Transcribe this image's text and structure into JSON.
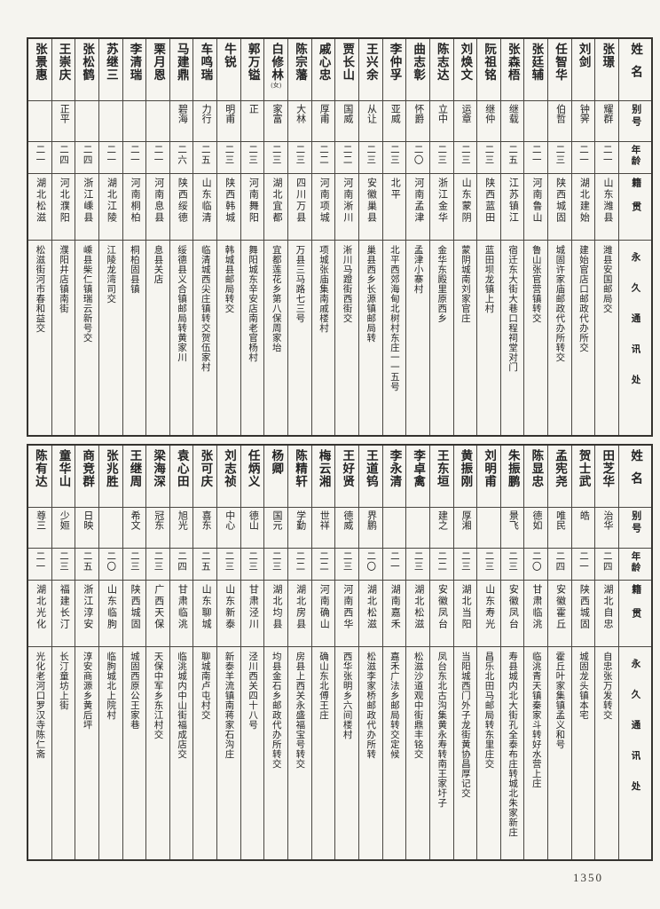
{
  "page": {
    "number": "1350"
  },
  "headers": {
    "name": "姓名",
    "alias": "别号",
    "age": "年龄",
    "native": "籍贯",
    "address": "永久通讯处"
  },
  "sections": [
    {
      "people": [
        {
          "name": "张璟",
          "alias": "耀群",
          "age": "二一",
          "native": "山东潍县",
          "address": "潍县安国邮局交"
        },
        {
          "name": "刘剑",
          "alias": "钟霁",
          "age": "二一",
          "native": "湖北建始",
          "address": "建始官店口邮政代办所交"
        },
        {
          "name": "任智华",
          "alias": "伯哲",
          "age": "二三",
          "native": "陕西城固",
          "address": "城固许家庙邮政代办所转交"
        },
        {
          "name": "张廷辅",
          "alias": "",
          "age": "二一",
          "native": "河南鲁山",
          "address": "鲁山张官营镇转交"
        },
        {
          "name": "张森梧",
          "alias": "继载",
          "age": "二五",
          "native": "江苏镇江",
          "address": "宿迁东大街大巷口程祠堂对门"
        },
        {
          "name": "阮祖铭",
          "alias": "继仲",
          "age": "二三",
          "native": "陕西蓝田",
          "address": "蓝田坝龙镇上村"
        },
        {
          "name": "刘焕文",
          "alias": "运章",
          "age": "二三",
          "native": "山东蒙阴",
          "address": "蒙阴城南刘家官庄"
        },
        {
          "name": "陈志达",
          "alias": "立中",
          "age": "二三",
          "native": "浙江金华",
          "address": "金华东殿里原西乡"
        },
        {
          "name": "曲志彰",
          "alias": "怀爵",
          "age": "二〇",
          "native": "河南孟津",
          "address": "孟津小寨村"
        },
        {
          "name": "李仲孚",
          "alias": "亚威",
          "age": "二三",
          "native": "北平",
          "address": "北平西郊海甸北树村东庄一一五号"
        },
        {
          "name": "王兴余",
          "alias": "从让",
          "age": "二三",
          "native": "安徽巢县",
          "address": "巢县西乡长源镇邮局转"
        },
        {
          "name": "贾长山",
          "alias": "国威",
          "age": "二二",
          "native": "河南淅川",
          "address": "淅川马蹬街西街交"
        },
        {
          "name": "戚心忠",
          "alias": "厚甫",
          "age": "二二",
          "native": "河南项城",
          "address": "项城张庙集南戚楼村"
        },
        {
          "name": "陈宗藩",
          "alias": "大林",
          "age": "二三",
          "native": "四川万县",
          "address": "万县三马路七三号"
        },
        {
          "name": "白修林",
          "note": "(女)",
          "alias": "家富",
          "age": "二三",
          "native": "湖北宜都",
          "address": "宜都莲花乡第八保周家坮"
        },
        {
          "name": "郭万镒",
          "alias": "正",
          "age": "二三",
          "native": "河南舞阳",
          "address": "舞阳城东辛安店南老官杨村"
        },
        {
          "name": "牛锐",
          "alias": "明甫",
          "age": "二三",
          "native": "陕西韩城",
          "address": "韩城县邮局转交"
        },
        {
          "name": "车鸣瑞",
          "alias": "力行",
          "age": "二五",
          "native": "山东临清",
          "address": "临清城西尖庄镇转交贺伍家村"
        },
        {
          "name": "马建鼎",
          "alias": "碧海",
          "age": "二六",
          "native": "陕西绥德",
          "address": "绥德县义合镇邮局转黄家川"
        },
        {
          "name": "栗月恩",
          "alias": "",
          "age": "二一",
          "native": "河南息县",
          "address": "息县关店"
        },
        {
          "name": "李清瑞",
          "alias": "",
          "age": "二一",
          "native": "河南桐柏",
          "address": "桐柏固县镇"
        },
        {
          "name": "苏继三",
          "alias": "",
          "age": "二一",
          "native": "湖北江陵",
          "address": "江陵龙湾司交"
        },
        {
          "name": "张松鹤",
          "alias": "",
          "age": "二四",
          "native": "浙江嵊县",
          "address": "嵊县柴仁镇瑞云新号交"
        },
        {
          "name": "王崇庆",
          "alias": "正平",
          "age": "二四",
          "native": "河北濮阳",
          "address": "濮阳井店镇南街"
        },
        {
          "name": "张景惠",
          "alias": "",
          "age": "二一",
          "native": "湖北松滋",
          "address": "松滋街河市春和益交"
        }
      ]
    },
    {
      "people": [
        {
          "name": "田芝华",
          "alias": "治华",
          "age": "二四",
          "native": "湖北自忠",
          "address": "自忠张万发转交"
        },
        {
          "name": "贺士武",
          "alias": "皓",
          "age": "二一",
          "native": "陕西城固",
          "address": "城固龙头镇本宅"
        },
        {
          "name": "孟宪尧",
          "alias": "唯民",
          "age": "二四",
          "native": "安徽霍丘",
          "address": "霍丘叶家集镇孟义和号"
        },
        {
          "name": "陈显忠",
          "alias": "德如",
          "age": "二〇",
          "native": "甘肃临洮",
          "address": "临洮青天镇秦家斗转好水营上庄"
        },
        {
          "name": "朱振鹏",
          "alias": "景飞",
          "age": "二三",
          "native": "安徽凤台",
          "address": "寿县城内北大街孔全泰布庄转城北朱家新庄"
        },
        {
          "name": "刘明甫",
          "alias": "",
          "age": "二三",
          "native": "山东寿光",
          "address": "昌乐北田马邮局转东里庄交"
        },
        {
          "name": "黄振刚",
          "alias": "厚湘",
          "age": "二三",
          "native": "湖北当阳",
          "address": "当阳城西门外子龙街黄协昌厚记交"
        },
        {
          "name": "王东垣",
          "alias": "建之",
          "age": "二二",
          "native": "安徽凤台",
          "address": "凤台东北古沟集黄永寿转南王家圩子"
        },
        {
          "name": "李卓禽",
          "alias": "",
          "age": "二三",
          "native": "湖北松滋",
          "address": "松滋沙道观中街鼎丰铭交"
        },
        {
          "name": "李永清",
          "alias": "",
          "age": "二一",
          "native": "湖南嘉禾",
          "address": "嘉禾广法乡邮局转交定候"
        },
        {
          "name": "王道钨",
          "alias": "界鹏",
          "age": "二〇",
          "native": "湖北松滋",
          "address": "松滋李家桥邮政代办所转"
        },
        {
          "name": "王好贤",
          "alias": "德威",
          "age": "二三",
          "native": "河南西华",
          "address": "西华张明乡六间楼村"
        },
        {
          "name": "梅云湘",
          "alias": "世祥",
          "age": "二二",
          "native": "河南确山",
          "address": "确山东北傅王庄"
        },
        {
          "name": "陈精轩",
          "alias": "学勤",
          "age": "二二",
          "native": "湖北房县",
          "address": "房县上西关永盛福宝号转交"
        },
        {
          "name": "杨卿",
          "alias": "国元",
          "age": "二三",
          "native": "湖北均县",
          "address": "均县金石乡邮政代办所转交"
        },
        {
          "name": "任炳义",
          "alias": "德山",
          "age": "二三",
          "native": "甘肃泾川",
          "address": "泾川西关四十八号"
        },
        {
          "name": "刘志祯",
          "alias": "中心",
          "age": "二三",
          "native": "山东新泰",
          "address": "新泰羊流镇南蒋家石沟庄"
        },
        {
          "name": "张可庆",
          "alias": "喜东",
          "age": "二五",
          "native": "山东聊城",
          "address": "聊城南卢屯村交"
        },
        {
          "name": "袁心田",
          "alias": "旭光",
          "age": "二四",
          "native": "甘肃临洮",
          "address": "临洮城内中山街福成店交"
        },
        {
          "name": "梁海深",
          "alias": "冠东",
          "age": "二三",
          "native": "广西天保",
          "address": "天保中军乡东江村交"
        },
        {
          "name": "王继周",
          "alias": "希文",
          "age": "二三",
          "native": "陕西城固",
          "address": "城固西原公王家巷"
        },
        {
          "name": "张兆胜",
          "alias": "",
          "age": "二〇",
          "native": "山东临朐",
          "address": "临朐城北上院村"
        },
        {
          "name": "商竞群",
          "alias": "日映",
          "age": "二五",
          "native": "浙江淳安",
          "address": "淳安商源乡黄后坪"
        },
        {
          "name": "童华山",
          "alias": "少姮",
          "age": "二三",
          "native": "福建长汀",
          "address": "长汀童坊上街"
        },
        {
          "name": "陈有达",
          "alias": "尊三",
          "age": "二一",
          "native": "湖北光化",
          "address": "光化老河口罗汉寺陈仁斋"
        }
      ]
    }
  ]
}
